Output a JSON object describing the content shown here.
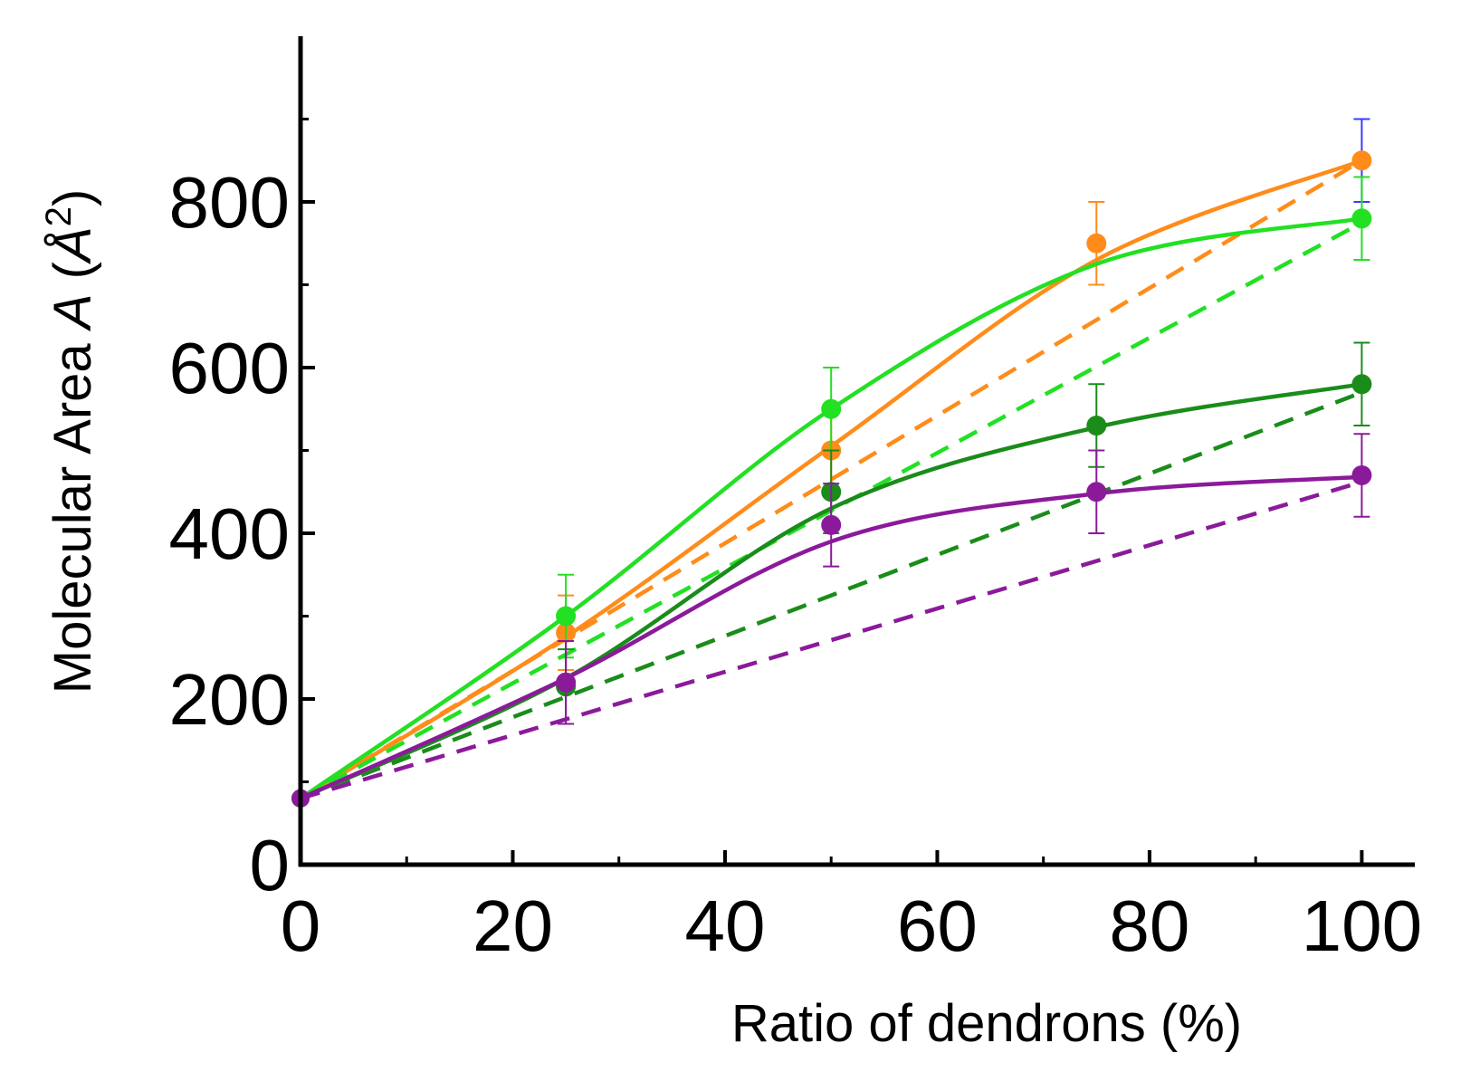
{
  "chart_data": {
    "type": "line",
    "title": "",
    "xlabel": "Ratio of dendrons (%)",
    "ylabel": {
      "prefix": "Molecular Area ",
      "italic": "A",
      "paren_open": " (",
      "unit": "Å",
      "sup": "2",
      "paren_close": ")"
    },
    "xlim": [
      0,
      105
    ],
    "ylim": [
      0,
      1000
    ],
    "xticks": [
      0,
      20,
      40,
      60,
      80,
      100
    ],
    "xticks_minor": [
      10,
      30,
      50,
      70,
      90
    ],
    "yticks": [
      0,
      200,
      400,
      600,
      800
    ],
    "yticks_minor": [
      100,
      300,
      500,
      700,
      900
    ],
    "grid": false,
    "series": [
      {
        "name": "orange",
        "color": "#ff8c1a",
        "points": [
          {
            "x": 25,
            "y": 280,
            "err": 45
          },
          {
            "x": 50,
            "y": 500,
            "err": 50
          },
          {
            "x": 75,
            "y": 750,
            "err": 50
          },
          {
            "x": 100,
            "y": 850,
            "err": 50,
            "err_color": "#3a3aff"
          }
        ],
        "fit": [
          [
            0,
            80
          ],
          [
            25,
            275
          ],
          [
            50,
            505
          ],
          [
            75,
            730
          ],
          [
            100,
            850
          ]
        ],
        "ideal": [
          [
            0,
            80
          ],
          [
            100,
            850
          ]
        ]
      },
      {
        "name": "light-green",
        "color": "#22e022",
        "points": [
          {
            "x": 25,
            "y": 300,
            "err": 50
          },
          {
            "x": 50,
            "y": 550,
            "err": 50
          },
          {
            "x": 100,
            "y": 780,
            "err": 50
          }
        ],
        "fit": [
          [
            0,
            80
          ],
          [
            25,
            300
          ],
          [
            50,
            550
          ],
          [
            75,
            725
          ],
          [
            100,
            780
          ]
        ],
        "ideal": [
          [
            0,
            80
          ],
          [
            100,
            775
          ]
        ]
      },
      {
        "name": "dark-green",
        "color": "#1a8c1a",
        "points": [
          {
            "x": 25,
            "y": 215,
            "err": 45
          },
          {
            "x": 50,
            "y": 450,
            "err": 50
          },
          {
            "x": 75,
            "y": 530,
            "err": 50
          },
          {
            "x": 100,
            "y": 580,
            "err": 50
          }
        ],
        "fit": [
          [
            0,
            80
          ],
          [
            25,
            225
          ],
          [
            50,
            430
          ],
          [
            75,
            528
          ],
          [
            100,
            580
          ]
        ],
        "ideal": [
          [
            0,
            80
          ],
          [
            100,
            570
          ]
        ]
      },
      {
        "name": "purple",
        "color": "#8b1a9a",
        "points": [
          {
            "x": 25,
            "y": 220,
            "err": 50
          },
          {
            "x": 50,
            "y": 410,
            "err": 50
          },
          {
            "x": 75,
            "y": 450,
            "err": 50
          },
          {
            "x": 100,
            "y": 470,
            "err": 50
          }
        ],
        "fit": [
          [
            0,
            80
          ],
          [
            25,
            225
          ],
          [
            50,
            390
          ],
          [
            75,
            448
          ],
          [
            100,
            468
          ]
        ],
        "ideal": [
          [
            0,
            80
          ],
          [
            100,
            462
          ]
        ]
      }
    ]
  }
}
